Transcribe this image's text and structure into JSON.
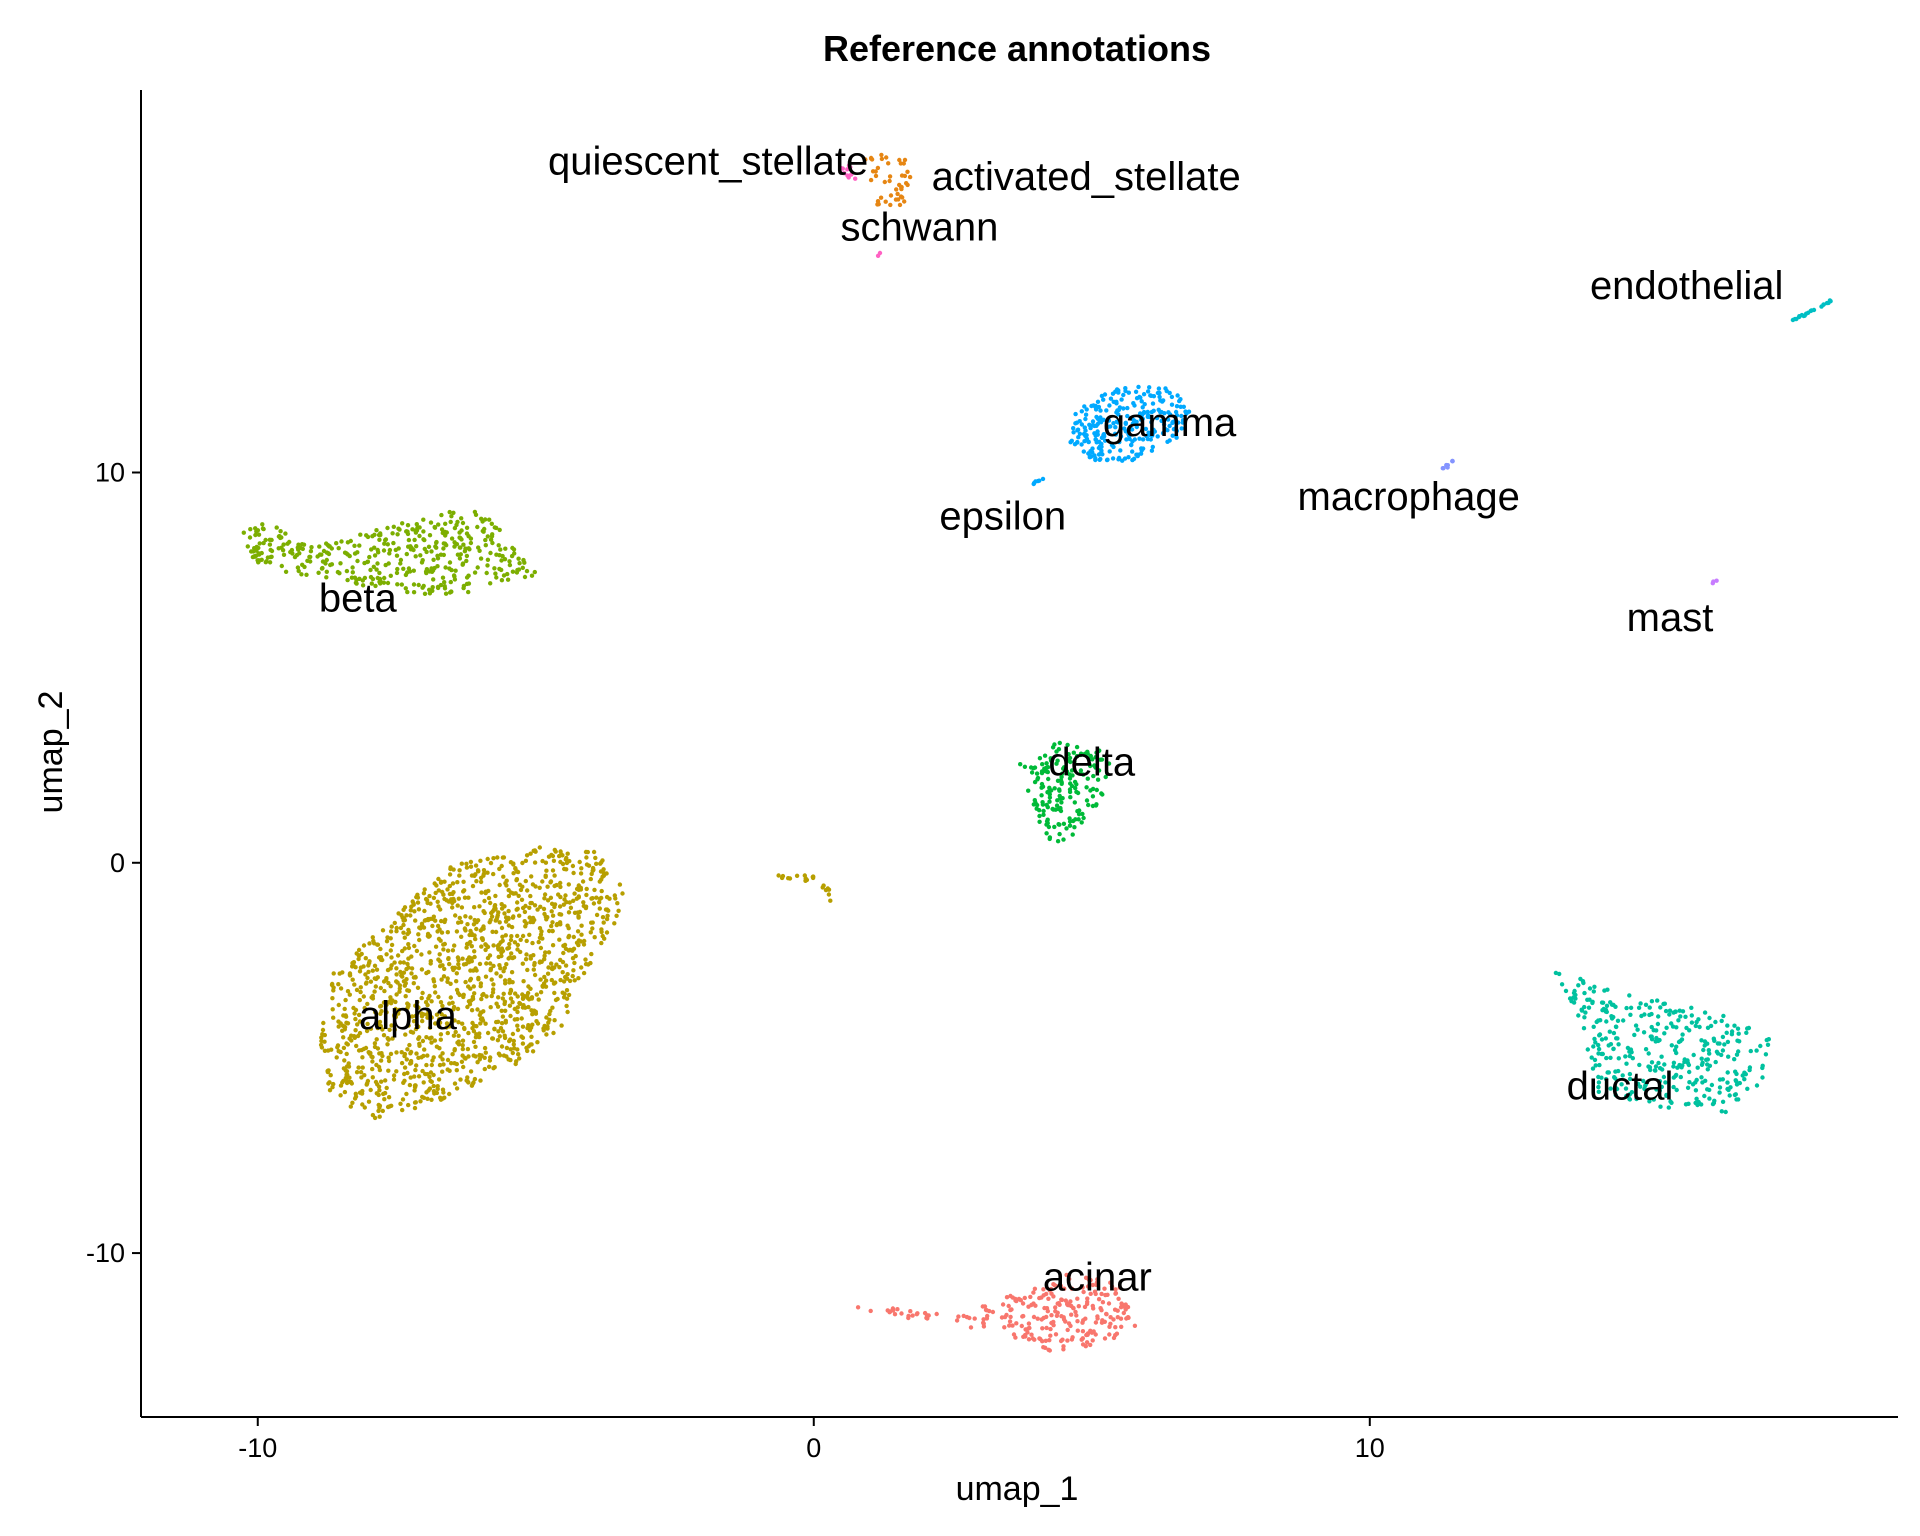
{
  "chart_data": {
    "type": "scatter",
    "title": "Reference annotations",
    "xlabel": "umap_1",
    "ylabel": "umap_2",
    "xlim": [
      -12.1,
      19.5
    ],
    "ylim": [
      -14.2,
      19.8
    ],
    "xticks": [
      -10,
      0,
      10
    ],
    "yticks": [
      -10,
      0,
      10
    ],
    "grid": false,
    "legend": "none",
    "clusters": [
      {
        "label": "alpha",
        "color": "#B79F00",
        "center": [
          -5.6,
          -3.8
        ],
        "spread": [
          2.6,
          2.2
        ],
        "count": 1400,
        "label_at": [
          -7.3,
          -3.9
        ],
        "polygon": [
          [
            -8.7,
            -2.9
          ],
          [
            -7.5,
            -1.3
          ],
          [
            -6.6,
            -0.1
          ],
          [
            -5.0,
            0.4
          ],
          [
            -3.9,
            0.3
          ],
          [
            -3.3,
            -0.9
          ],
          [
            -3.6,
            -1.6
          ],
          [
            -4.2,
            -3.0
          ],
          [
            -4.5,
            -4.3
          ],
          [
            -5.4,
            -5.2
          ],
          [
            -6.7,
            -6.1
          ],
          [
            -7.8,
            -6.6
          ],
          [
            -8.7,
            -6.0
          ],
          [
            -8.9,
            -4.6
          ]
        ]
      },
      {
        "label": "beta",
        "color": "#7CAE00",
        "center": [
          -7.0,
          8.1
        ],
        "spread": [
          2.3,
          0.55
        ],
        "count": 420,
        "label_at": [
          -8.2,
          6.8
        ],
        "polygon": [
          [
            -10.4,
            8.6
          ],
          [
            -9.8,
            8.7
          ],
          [
            -9.0,
            8.1
          ],
          [
            -7.7,
            8.6
          ],
          [
            -6.6,
            9.0
          ],
          [
            -5.8,
            9.0
          ],
          [
            -5.5,
            8.3
          ],
          [
            -4.9,
            7.4
          ],
          [
            -5.6,
            7.2
          ],
          [
            -6.3,
            6.8
          ],
          [
            -7.2,
            6.9
          ],
          [
            -8.1,
            7.1
          ],
          [
            -9.3,
            7.4
          ],
          [
            -10.0,
            7.6
          ]
        ]
      },
      {
        "label": "delta",
        "color": "#00BA38",
        "center": [
          4.4,
          2.0
        ],
        "spread": [
          0.45,
          0.6
        ],
        "count": 180,
        "label_at": [
          5.0,
          2.6
        ],
        "polygon": [
          [
            3.7,
            2.6
          ],
          [
            4.3,
            3.1
          ],
          [
            5.0,
            3.0
          ],
          [
            5.5,
            2.6
          ],
          [
            5.1,
            1.5
          ],
          [
            4.6,
            0.5
          ],
          [
            4.2,
            0.6
          ],
          [
            3.8,
            1.8
          ]
        ]
      },
      {
        "label": "gamma",
        "color": "#00A9FF",
        "center": [
          5.7,
          11.0
        ],
        "spread": [
          0.7,
          0.45
        ],
        "count": 280,
        "label_at": [
          6.4,
          11.3
        ],
        "polygon": [
          [
            4.7,
            11.6
          ],
          [
            5.4,
            12.2
          ],
          [
            6.4,
            12.2
          ],
          [
            6.8,
            11.6
          ],
          [
            6.5,
            10.8
          ],
          [
            5.8,
            10.3
          ],
          [
            5.0,
            10.3
          ],
          [
            4.6,
            10.8
          ]
        ]
      },
      {
        "label": "acinar",
        "color": "#F8766D",
        "center": [
          4.8,
          -11.7
        ],
        "spread": [
          0.8,
          0.45
        ],
        "count": 260,
        "label_at": [
          5.1,
          -10.6
        ],
        "polygon": [
          [
            0.7,
            -11.3
          ],
          [
            2.5,
            -11.6
          ],
          [
            3.7,
            -11.0
          ],
          [
            4.6,
            -10.5
          ],
          [
            5.5,
            -10.8
          ],
          [
            5.8,
            -11.9
          ],
          [
            5.1,
            -12.5
          ],
          [
            4.2,
            -12.5
          ],
          [
            3.3,
            -12.0
          ],
          [
            2.2,
            -11.8
          ],
          [
            0.7,
            -11.4
          ]
        ]
      },
      {
        "label": "ductal",
        "color": "#00C19F",
        "center": [
          16.0,
          -5.0
        ],
        "spread": [
          1.2,
          0.55
        ],
        "count": 360,
        "label_at": [
          14.5,
          -5.7
        ],
        "polygon": [
          [
            13.3,
            -2.7
          ],
          [
            14.2,
            -3.2
          ],
          [
            15.5,
            -3.6
          ],
          [
            16.7,
            -4.0
          ],
          [
            17.2,
            -4.5
          ],
          [
            17.1,
            -5.6
          ],
          [
            16.4,
            -6.4
          ],
          [
            15.1,
            -6.3
          ],
          [
            14.1,
            -5.9
          ],
          [
            13.8,
            -4.1
          ]
        ]
      },
      {
        "label": "activated_stellate",
        "color": "#E68613",
        "center": [
          1.5,
          17.6
        ],
        "spread": [
          0.25,
          0.35
        ],
        "count": 45,
        "label_at": [
          4.9,
          17.6
        ],
        "polygon": [
          [
            0.9,
            18.2
          ],
          [
            1.6,
            18.2
          ],
          [
            1.8,
            17.6
          ],
          [
            1.6,
            16.8
          ],
          [
            1.2,
            16.6
          ],
          [
            1.0,
            17.3
          ]
        ]
      },
      {
        "label": "quiescent_stellate",
        "color": "#FF61C3",
        "center": [
          0.6,
          17.8
        ],
        "spread": [
          0.12,
          0.1
        ],
        "count": 10,
        "label_at": [
          -1.9,
          18.0
        ],
        "polygon": [
          [
            0.45,
            17.9
          ],
          [
            0.7,
            17.9
          ],
          [
            0.75,
            17.5
          ],
          [
            0.5,
            17.6
          ]
        ]
      },
      {
        "label": "schwann",
        "color": "#FF61C3",
        "center": [
          1.2,
          15.6
        ],
        "spread": [
          0.03,
          0.05
        ],
        "count": 2,
        "label_at": [
          1.9,
          16.3
        ],
        "polygon": [
          [
            1.15,
            15.65
          ],
          [
            1.25,
            15.65
          ],
          [
            1.25,
            15.55
          ],
          [
            1.15,
            15.55
          ]
        ]
      },
      {
        "label": "epsilon",
        "color": "#00A9FF",
        "center": [
          4.0,
          9.8
        ],
        "spread": [
          0.1,
          0.07
        ],
        "count": 6,
        "label_at": [
          3.4,
          8.9
        ],
        "polygon": [
          [
            3.9,
            9.7
          ],
          [
            4.1,
            9.9
          ],
          [
            4.2,
            9.9
          ],
          [
            4.0,
            9.7
          ]
        ]
      },
      {
        "label": "macrophage",
        "color": "#8494FF",
        "center": [
          11.4,
          10.2
        ],
        "spread": [
          0.15,
          0.08
        ],
        "count": 8,
        "label_at": [
          10.7,
          9.4
        ],
        "polygon": [
          [
            11.3,
            10.1
          ],
          [
            11.5,
            10.3
          ]
        ]
      },
      {
        "label": "mast",
        "color": "#C77CFF",
        "center": [
          16.2,
          7.2
        ],
        "spread": [
          0.05,
          0.05
        ],
        "count": 3,
        "label_at": [
          15.4,
          6.3
        ],
        "polygon": [
          [
            16.15,
            7.15
          ],
          [
            16.25,
            7.25
          ]
        ]
      },
      {
        "label": "endothelial",
        "color": "#00BFC4",
        "center": [
          17.9,
          14.1
        ],
        "spread": [
          0.4,
          0.18
        ],
        "count": 20,
        "label_at": [
          15.7,
          14.8
        ],
        "polygon": [
          [
            17.6,
            13.9
          ],
          [
            18.3,
            14.4
          ]
        ]
      },
      {
        "label": "",
        "color": "#B79F00",
        "center": [
          -0.3,
          -0.4
        ],
        "spread": [
          0.35,
          0.12
        ],
        "count": 20,
        "polygon": [
          [
            -0.7,
            -0.3
          ],
          [
            0.0,
            -0.3
          ],
          [
            0.3,
            -0.7
          ],
          [
            0.35,
            -1.1
          ],
          [
            0.1,
            -0.5
          ],
          [
            -0.6,
            -0.4
          ]
        ]
      }
    ]
  }
}
